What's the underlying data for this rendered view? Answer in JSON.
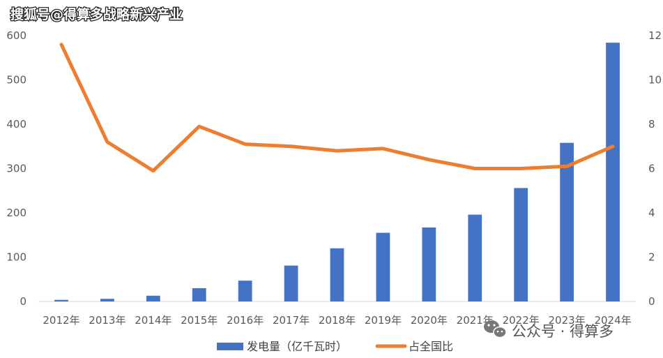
{
  "watermark": {
    "top_left": "搜狐号@得算多战略新兴产业",
    "bottom_right": "公众号 · 得算多"
  },
  "chart_data": {
    "type": "bar",
    "categories": [
      "2012年",
      "2013年",
      "2014年",
      "2015年",
      "2016年",
      "2017年",
      "2018年",
      "2019年",
      "2020年",
      "2021年",
      "2022年",
      "2023年",
      "2024年"
    ],
    "series": [
      {
        "name": "发电量（亿千瓦时）",
        "type": "bar",
        "axis": "left",
        "color": "#4472C4",
        "values": [
          3.6,
          6,
          13,
          30,
          47,
          81,
          120,
          155,
          167,
          196,
          256,
          358,
          584
        ]
      },
      {
        "name": "占全国比",
        "type": "line",
        "axis": "right",
        "color": "#ED7D31",
        "values": [
          11.6,
          7.2,
          5.9,
          7.9,
          7.1,
          7.0,
          6.8,
          6.9,
          6.4,
          6.0,
          6.0,
          6.1,
          7.0
        ]
      }
    ],
    "y_left": {
      "min": 0,
      "max": 600,
      "ticks": [
        0,
        100,
        200,
        300,
        400,
        500,
        600
      ]
    },
    "y_right": {
      "min": 0,
      "max": 12,
      "ticks": [
        0,
        2,
        4,
        6,
        8,
        10,
        12
      ]
    },
    "legend_position": "bottom",
    "grid": false
  }
}
